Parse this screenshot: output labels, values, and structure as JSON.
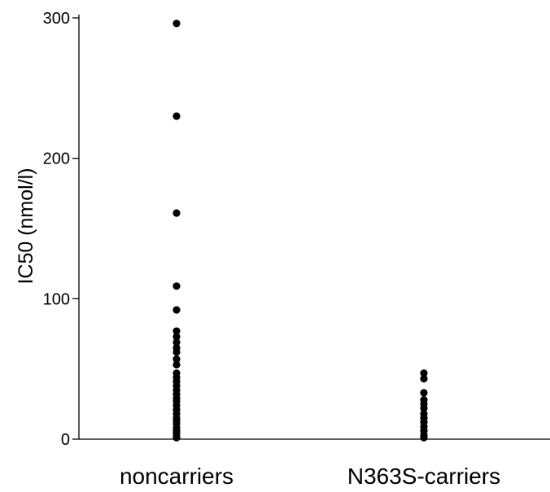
{
  "chart_data": {
    "type": "scatter",
    "title": "",
    "xlabel": "",
    "ylabel": "IC50 (nmol/l)",
    "ylim": [
      0,
      300
    ],
    "yticks": [
      0,
      100,
      200,
      300
    ],
    "grid": false,
    "categories": [
      "noncarriers",
      "N363S-carriers"
    ],
    "series": [
      {
        "category": "noncarriers",
        "values": [
          296,
          230,
          161,
          109,
          92,
          77,
          73,
          69,
          65,
          62,
          57,
          53,
          47,
          44,
          41,
          38,
          35,
          32,
          29,
          27,
          24,
          21,
          18,
          15,
          13,
          11,
          8,
          6,
          4,
          2,
          1
        ]
      },
      {
        "category": "N363S-carriers",
        "values": [
          47,
          43,
          33,
          28,
          25,
          22,
          18,
          15,
          12,
          9,
          6,
          3,
          1
        ]
      }
    ],
    "colors": {
      "point": "#000000",
      "axis": "#000000"
    }
  }
}
